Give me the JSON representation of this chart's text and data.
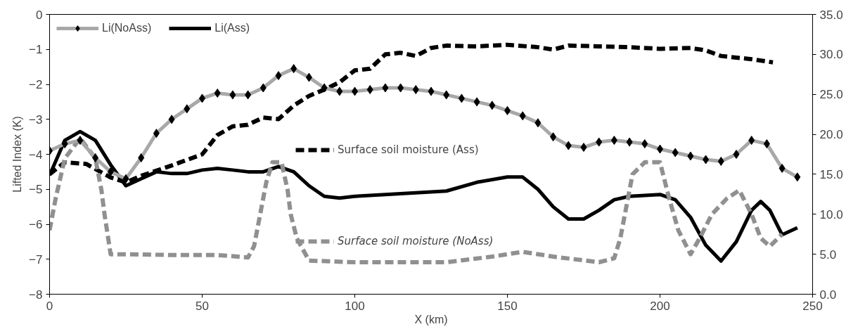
{
  "chart_data": {
    "type": "line",
    "xlabel": "X (km)",
    "ylabel": "Lifted Index (K)",
    "xlim": [
      0,
      250
    ],
    "xticks": [
      0,
      50,
      100,
      150,
      200,
      250
    ],
    "ylim": [
      -8,
      0
    ],
    "yticks": [
      -8,
      -7,
      -6,
      -5,
      -4,
      -3,
      -2,
      -1,
      0
    ],
    "y2lim": [
      0,
      35
    ],
    "y2ticks": [
      {
        "value": 0,
        "label": "0.0"
      },
      {
        "value": 5,
        "label": "5.0"
      },
      {
        "value": 10,
        "label": "10.0"
      },
      {
        "value": 15,
        "label": "15.0"
      },
      {
        "value": 20,
        "label": "20.0"
      },
      {
        "value": 25,
        "label": "25.0"
      },
      {
        "value": 30,
        "label": "30.0"
      },
      {
        "value": 35,
        "label": "35.0"
      }
    ],
    "grid": false,
    "legend": "top left",
    "series": [
      {
        "name": "Li(NoAss)",
        "color": "#a8a8a8",
        "marker": "diamond",
        "line_style": "solid",
        "x": [
          0,
          5,
          10,
          15,
          20,
          25,
          30,
          35,
          40,
          45,
          50,
          55,
          60,
          65,
          70,
          75,
          80,
          85,
          90,
          95,
          100,
          105,
          110,
          115,
          120,
          125,
          130,
          135,
          140,
          145,
          150,
          155,
          160,
          165,
          170,
          175,
          180,
          185,
          190,
          195,
          200,
          205,
          210,
          215,
          220,
          225,
          230,
          235,
          240,
          245
        ],
        "values": [
          -3.9,
          -3.7,
          -3.6,
          -4.1,
          -4.5,
          -4.7,
          -4.1,
          -3.4,
          -3.0,
          -2.7,
          -2.4,
          -2.25,
          -2.3,
          -2.3,
          -2.1,
          -1.75,
          -1.55,
          -1.8,
          -2.1,
          -2.2,
          -2.2,
          -2.15,
          -2.1,
          -2.1,
          -2.15,
          -2.2,
          -2.3,
          -2.4,
          -2.5,
          -2.6,
          -2.75,
          -2.9,
          -3.1,
          -3.5,
          -3.75,
          -3.8,
          -3.65,
          -3.6,
          -3.65,
          -3.7,
          -3.85,
          -3.95,
          -4.05,
          -4.15,
          -4.2,
          -4.0,
          -3.6,
          -3.7,
          -4.4,
          -4.65
        ]
      },
      {
        "name": "Li(Ass)",
        "color": "#000000",
        "marker": "none",
        "line_style": "solid",
        "x": [
          0,
          5,
          10,
          15,
          20,
          25,
          30,
          35,
          40,
          45,
          50,
          55,
          60,
          65,
          70,
          75,
          80,
          85,
          90,
          95,
          100,
          110,
          120,
          130,
          140,
          150,
          155,
          160,
          165,
          170,
          175,
          180,
          185,
          190,
          200,
          205,
          210,
          215,
          220,
          225,
          230,
          233,
          236,
          240,
          245
        ],
        "values": [
          -4.6,
          -3.6,
          -3.35,
          -3.6,
          -4.3,
          -4.9,
          -4.7,
          -4.5,
          -4.55,
          -4.55,
          -4.45,
          -4.4,
          -4.45,
          -4.5,
          -4.5,
          -4.35,
          -4.5,
          -4.9,
          -5.2,
          -5.25,
          -5.2,
          -5.15,
          -5.1,
          -5.05,
          -4.8,
          -4.65,
          -4.65,
          -5.0,
          -5.5,
          -5.85,
          -5.85,
          -5.6,
          -5.3,
          -5.2,
          -5.15,
          -5.3,
          -5.8,
          -6.6,
          -7.05,
          -6.5,
          -5.6,
          -5.35,
          -5.6,
          -6.3,
          -6.1
        ]
      },
      {
        "name": "Surface soil moisture (Ass)",
        "color": "#000000",
        "marker": "none",
        "line_style": "dashed",
        "axis": "y2",
        "x": [
          0,
          5,
          12,
          20,
          25,
          30,
          40,
          45,
          50,
          55,
          60,
          65,
          70,
          75,
          80,
          85,
          90,
          95,
          100,
          105,
          110,
          115,
          120,
          125,
          130,
          140,
          150,
          160,
          165,
          170,
          180,
          190,
          200,
          210,
          215,
          220,
          230,
          237
        ],
        "values": [
          15.0,
          16.5,
          16.3,
          14.6,
          14.0,
          14.8,
          16.1,
          16.8,
          17.5,
          19.9,
          21.0,
          21.2,
          22.1,
          21.9,
          23.6,
          24.8,
          25.6,
          26.5,
          28.0,
          28.2,
          30.0,
          30.2,
          29.8,
          30.8,
          31.1,
          31.0,
          31.2,
          30.9,
          30.6,
          31.1,
          31.0,
          30.9,
          30.7,
          30.8,
          30.5,
          29.8,
          29.4,
          29.0
        ]
      },
      {
        "name": "Surface soil moisture (NoAss)",
        "color": "#909090",
        "marker": "none",
        "line_style": "dashed",
        "axis": "y2",
        "x": [
          0,
          2,
          5,
          10,
          15,
          17,
          18,
          19,
          20,
          25,
          40,
          55,
          65,
          67,
          69,
          71,
          73,
          76,
          78,
          79,
          81,
          85,
          100,
          130,
          145,
          155,
          165,
          180,
          185,
          187,
          189,
          191,
          195,
          200,
          203,
          206,
          210,
          213,
          217,
          222,
          226,
          230,
          233,
          236,
          240
        ],
        "values": [
          8.0,
          12.0,
          17.0,
          19.5,
          17.0,
          13.0,
          10.0,
          7.5,
          5.0,
          5.0,
          4.9,
          4.9,
          4.6,
          6.0,
          10.0,
          14.0,
          16.5,
          16.5,
          13.0,
          10.0,
          7.0,
          4.2,
          4.0,
          4.0,
          4.7,
          5.3,
          4.7,
          4.0,
          4.5,
          7.0,
          11.0,
          15.0,
          16.5,
          16.5,
          12.0,
          8.0,
          5.0,
          7.0,
          10.0,
          12.0,
          13.0,
          10.0,
          7.0,
          6.0,
          7.5
        ]
      }
    ]
  }
}
